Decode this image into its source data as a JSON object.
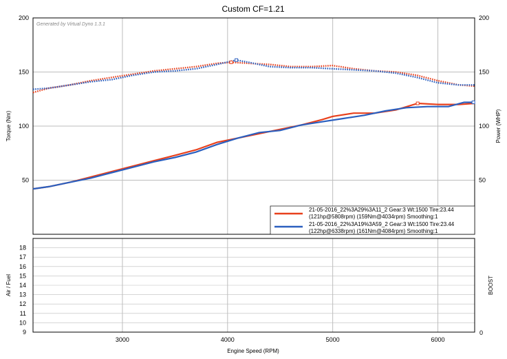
{
  "chart_data": [
    {
      "type": "line",
      "title": "Custom CF=1.21",
      "watermark": "Generated by Virtual Dyno 1.3.1",
      "xlabel": "Engine Speed (RPM)",
      "ylabel_left": "Torque (Nm)",
      "ylabel_right": "Power (WHP)",
      "xlim": [
        2150,
        6350
      ],
      "ylim": [
        0,
        200
      ],
      "x_ticks": [
        "3000",
        "4000",
        "5000",
        "6000"
      ],
      "x_tick_values": [
        3000,
        4000,
        5000,
        6000
      ],
      "y_ticks": [
        "50",
        "100",
        "150",
        "200"
      ],
      "y_tick_values": [
        50,
        100,
        150,
        200
      ],
      "grid": true,
      "legend_position": "bottom-right",
      "series": [
        {
          "name": "21-05-2016_22%3A29%3A11_2 Gear:3 Wt:1500 Tire:23.44",
          "detail": "(121hp@5808rpm) (159Nm@4034rpm) Smoothing:1",
          "color": "#e8401c",
          "torque": {
            "x": [
              2150,
              2300,
              2500,
              2700,
              2900,
              3100,
              3300,
              3500,
              3700,
              3900,
              4034,
              4200,
              4400,
              4600,
              4800,
              5000,
              5200,
              5400,
              5600,
              5800,
              6000,
              6200,
              6350
            ],
            "y": [
              131,
              135,
              138,
              142,
              145,
              148,
              151,
              153,
              155,
              158,
              159,
              158,
              157,
              155,
              155,
              156,
              153,
              151,
              150,
              147,
              142,
              138,
              137
            ]
          },
          "power": {
            "x": [
              2150,
              2300,
              2500,
              2700,
              2900,
              3100,
              3300,
              3500,
              3700,
              3900,
              4100,
              4300,
              4500,
              4700,
              4900,
              5000,
              5200,
              5400,
              5600,
              5808,
              6000,
              6200,
              6350
            ],
            "y": [
              42,
              44,
              48,
              53,
              58,
              63,
              68,
              73,
              78,
              85,
              89,
              93,
              97,
              101,
              106,
              109,
              112,
              112,
              115,
              121,
              120,
              120,
              121
            ]
          }
        },
        {
          "name": "21-05-2016_22%3A19%3A59_2 Gear:3 Wt:1500 Tire:23.44",
          "detail": "(122hp@6338rpm) (161Nm@4084rpm) Smoothing:1",
          "color": "#2a5fbf",
          "torque": {
            "x": [
              2150,
              2300,
              2500,
              2700,
              2900,
              3100,
              3300,
              3500,
              3700,
              3900,
              4084,
              4200,
              4400,
              4600,
              4800,
              5000,
              5200,
              5400,
              5600,
              5800,
              6000,
              6200,
              6350
            ],
            "y": [
              134,
              135,
              138,
              141,
              143,
              147,
              150,
              151,
              153,
              157,
              161,
              159,
              155,
              154,
              154,
              153,
              152,
              151,
              149,
              145,
              140,
              138,
              138
            ]
          },
          "power": {
            "x": [
              2150,
              2300,
              2500,
              2700,
              2900,
              3100,
              3300,
              3500,
              3700,
              3900,
              4100,
              4300,
              4500,
              4700,
              4900,
              5100,
              5300,
              5500,
              5700,
              5900,
              6100,
              6250,
              6338
            ],
            "y": [
              42,
              44,
              48,
              52,
              57,
              62,
              67,
              71,
              76,
              83,
              89,
              94,
              96,
              101,
              104,
              107,
              110,
              114,
              117,
              118,
              118,
              122,
              122
            ]
          }
        }
      ]
    },
    {
      "type": "line",
      "ylabel_left": "Air / Fuel",
      "ylabel_right": "BOOST",
      "xlim": [
        2150,
        6350
      ],
      "ylim": [
        9,
        19
      ],
      "y_ticks": [
        "9",
        "10",
        "11",
        "12",
        "13",
        "14",
        "15",
        "16",
        "17",
        "18"
      ],
      "y_tick_values": [
        9,
        10,
        11,
        12,
        13,
        14,
        15,
        16,
        17,
        18
      ],
      "y_right_ticks": [
        "0"
      ],
      "grid": true,
      "series": []
    }
  ]
}
